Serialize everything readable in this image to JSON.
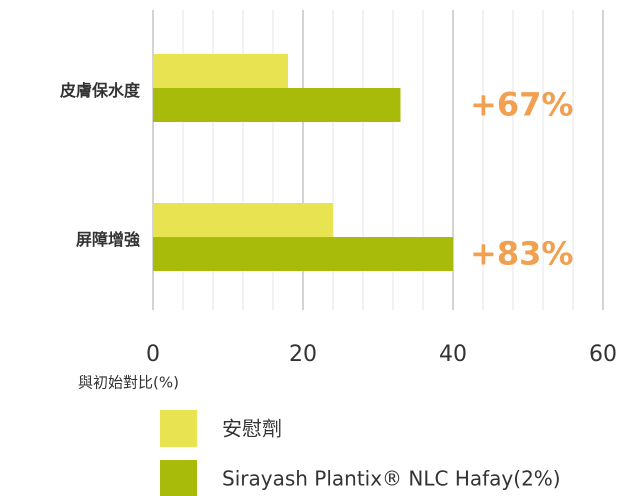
{
  "chart_data": {
    "type": "hbar",
    "categories": [
      "皮膚保水度",
      "屏障增強"
    ],
    "series": [
      {
        "name": "安慰劑",
        "color": "#e8e451",
        "values": [
          18,
          24
        ]
      },
      {
        "name": "Sirayash Plantix® NLC Hafay(2%)",
        "color": "#a9bb0a",
        "values": [
          33,
          40
        ]
      }
    ],
    "xlim": [
      0,
      60
    ],
    "xticks": [
      0,
      20,
      40,
      60
    ],
    "minor_xticks": [
      4,
      8,
      12,
      16,
      24,
      28,
      32,
      36,
      44,
      48,
      52,
      56
    ],
    "grid": true,
    "xlabel": "與初始對比(%)",
    "annotations": [
      "+67%",
      "+83%"
    ],
    "annotation_color": "#f0a050"
  }
}
